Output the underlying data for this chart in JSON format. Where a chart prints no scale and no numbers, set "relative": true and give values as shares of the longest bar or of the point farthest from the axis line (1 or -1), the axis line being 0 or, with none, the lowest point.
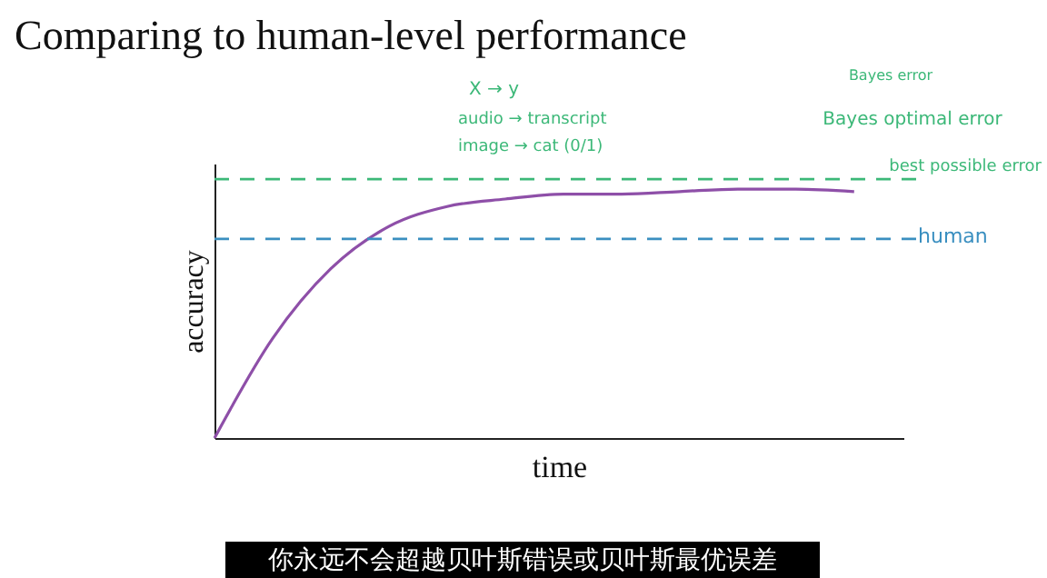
{
  "chart_data": {
    "type": "line",
    "title": "Comparing to human-level performance",
    "xlabel": "time",
    "ylabel": "accuracy",
    "relative": true,
    "tick_labels": false,
    "grid": false,
    "marker": "none",
    "categories": [
      null,
      null,
      null,
      null,
      null,
      null,
      null,
      null,
      null,
      null,
      null,
      null
    ],
    "series": [
      {
        "color": "#8e4fa8",
        "values": [
          0,
          0.4,
          0.68,
          0.85,
          0.93,
          0.96,
          0.98,
          0.98,
          0.99,
          1.0,
          1.0,
          0.99
        ]
      }
    ],
    "ref_lines": [
      {
        "axis": "y",
        "value": 1.04,
        "label": "Bayes optimal error",
        "color": "#3cb878",
        "line_style": "dashed"
      },
      {
        "axis": "y",
        "value": 0.8,
        "label": "human",
        "color": "#3a8fc0",
        "line_style": "dashed"
      }
    ],
    "annotations": [
      "X → y",
      "audio → transcript",
      "image → cat (0/1)",
      "Bayes error",
      "best possible error",
      "你永远不会超越贝叶斯错误或贝叶斯最优误差"
    ]
  }
}
